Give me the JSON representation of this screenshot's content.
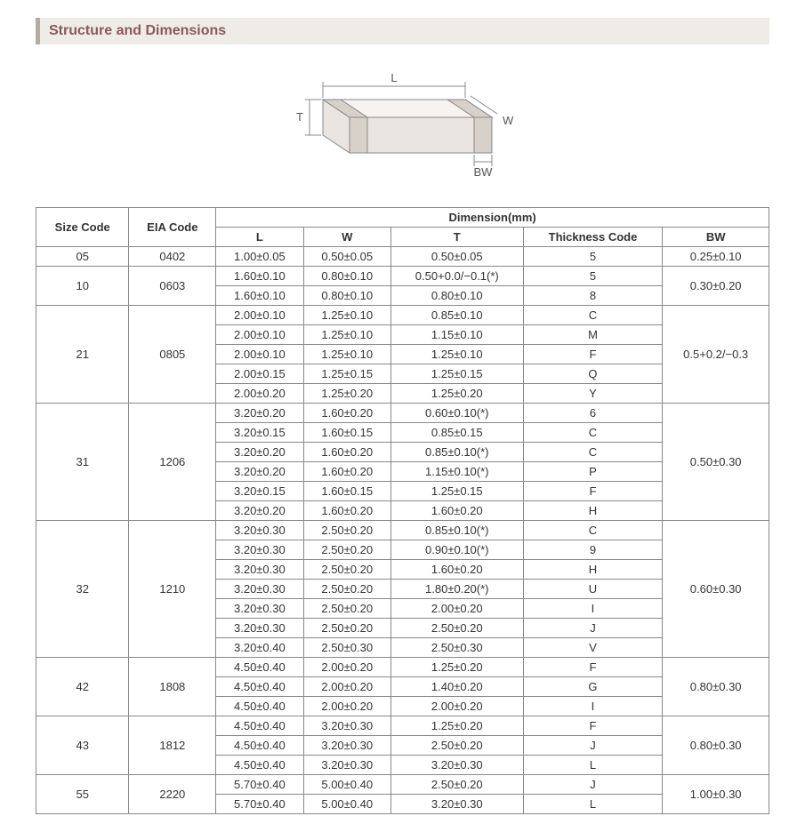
{
  "title": "Structure and Dimensions",
  "diagram": {
    "labels": {
      "L": "L",
      "W": "W",
      "T": "T",
      "BW": "BW"
    },
    "stroke": "#888888",
    "fill_top": "#f6f3f0",
    "fill_side": "#eae5e0",
    "fill_end": "#d8d1c9"
  },
  "headers": {
    "size_code": "Size Code",
    "eia_code": "EIA Code",
    "dimension": "Dimension(mm)",
    "L": "L",
    "W": "W",
    "T": "T",
    "thickness_code": "Thickness Code",
    "BW": "BW"
  },
  "groups": [
    {
      "size": "05",
      "eia": "0402",
      "bw": "0.25±0.10",
      "rows": [
        {
          "L": "1.00±0.05",
          "W": "0.50±0.05",
          "T": "0.50±0.05",
          "TC": "5"
        }
      ]
    },
    {
      "size": "10",
      "eia": "0603",
      "bw": "0.30±0.20",
      "rows": [
        {
          "L": "1.60±0.10",
          "W": "0.80±0.10",
          "T": "0.50+0.0/−0.1(*)",
          "TC": "5"
        },
        {
          "L": "1.60±0.10",
          "W": "0.80±0.10",
          "T": "0.80±0.10",
          "TC": "8"
        }
      ]
    },
    {
      "size": "21",
      "eia": "0805",
      "bw": "0.5+0.2/−0.3",
      "rows": [
        {
          "L": "2.00±0.10",
          "W": "1.25±0.10",
          "T": "0.85±0.10",
          "TC": "C"
        },
        {
          "L": "2.00±0.10",
          "W": "1.25±0.10",
          "T": "1.15±0.10",
          "TC": "M"
        },
        {
          "L": "2.00±0.10",
          "W": "1.25±0.10",
          "T": "1.25±0.10",
          "TC": "F"
        },
        {
          "L": "2.00±0.15",
          "W": "1.25±0.15",
          "T": "1.25±0.15",
          "TC": "Q"
        },
        {
          "L": "2.00±0.20",
          "W": "1.25±0.20",
          "T": "1.25±0.20",
          "TC": "Y"
        }
      ]
    },
    {
      "size": "31",
      "eia": "1206",
      "bw": "0.50±0.30",
      "rows": [
        {
          "L": "3.20±0.20",
          "W": "1.60±0.20",
          "T": "0.60±0.10(*)",
          "TC": "6"
        },
        {
          "L": "3.20±0.15",
          "W": "1.60±0.15",
          "T": "0.85±0.15",
          "TC": "C"
        },
        {
          "L": "3.20±0.20",
          "W": "1.60±0.20",
          "T": "0.85±0.10(*)",
          "TC": "C"
        },
        {
          "L": "3.20±0.20",
          "W": "1.60±0.20",
          "T": "1.15±0.10(*)",
          "TC": "P"
        },
        {
          "L": "3.20±0.15",
          "W": "1.60±0.15",
          "T": "1.25±0.15",
          "TC": "F"
        },
        {
          "L": "3.20±0.20",
          "W": "1.60±0.20",
          "T": "1.60±0.20",
          "TC": "H"
        }
      ]
    },
    {
      "size": "32",
      "eia": "1210",
      "bw": "0.60±0.30",
      "rows": [
        {
          "L": "3.20±0.30",
          "W": "2.50±0.20",
          "T": "0.85±0.10(*)",
          "TC": "C"
        },
        {
          "L": "3.20±0.30",
          "W": "2.50±0.20",
          "T": "0.90±0.10(*)",
          "TC": "9"
        },
        {
          "L": "3.20±0.30",
          "W": "2.50±0.20",
          "T": "1.60±0.20",
          "TC": "H"
        },
        {
          "L": "3.20±0.30",
          "W": "2.50±0.20",
          "T": "1.80±0.20(*)",
          "TC": "U"
        },
        {
          "L": "3.20±0.30",
          "W": "2.50±0.20",
          "T": "2.00±0.20",
          "TC": "I"
        },
        {
          "L": "3.20±0.30",
          "W": "2.50±0.20",
          "T": "2.50±0.20",
          "TC": "J"
        },
        {
          "L": "3.20±0.40",
          "W": "2.50±0.30",
          "T": "2.50±0.30",
          "TC": "V"
        }
      ]
    },
    {
      "size": "42",
      "eia": "1808",
      "bw": "0.80±0.30",
      "rows": [
        {
          "L": "4.50±0.40",
          "W": "2.00±0.20",
          "T": "1.25±0.20",
          "TC": "F"
        },
        {
          "L": "4.50±0.40",
          "W": "2.00±0.20",
          "T": "1.40±0.20",
          "TC": "G"
        },
        {
          "L": "4.50±0.40",
          "W": "2.00±0.20",
          "T": "2.00±0.20",
          "TC": "I"
        }
      ]
    },
    {
      "size": "43",
      "eia": "1812",
      "bw": "0.80±0.30",
      "rows": [
        {
          "L": "4.50±0.40",
          "W": "3.20±0.30",
          "T": "1.25±0.20",
          "TC": "F"
        },
        {
          "L": "4.50±0.40",
          "W": "3.20±0.30",
          "T": "2.50±0.20",
          "TC": "J"
        },
        {
          "L": "4.50±0.40",
          "W": "3.20±0.30",
          "T": "3.20±0.30",
          "TC": "L"
        }
      ]
    },
    {
      "size": "55",
      "eia": "2220",
      "bw": "1.00±0.30",
      "rows": [
        {
          "L": "5.70±0.40",
          "W": "5.00±0.40",
          "T": "2.50±0.20",
          "TC": "J"
        },
        {
          "L": "5.70±0.40",
          "W": "5.00±0.40",
          "T": "3.20±0.30",
          "TC": "L"
        }
      ]
    }
  ]
}
